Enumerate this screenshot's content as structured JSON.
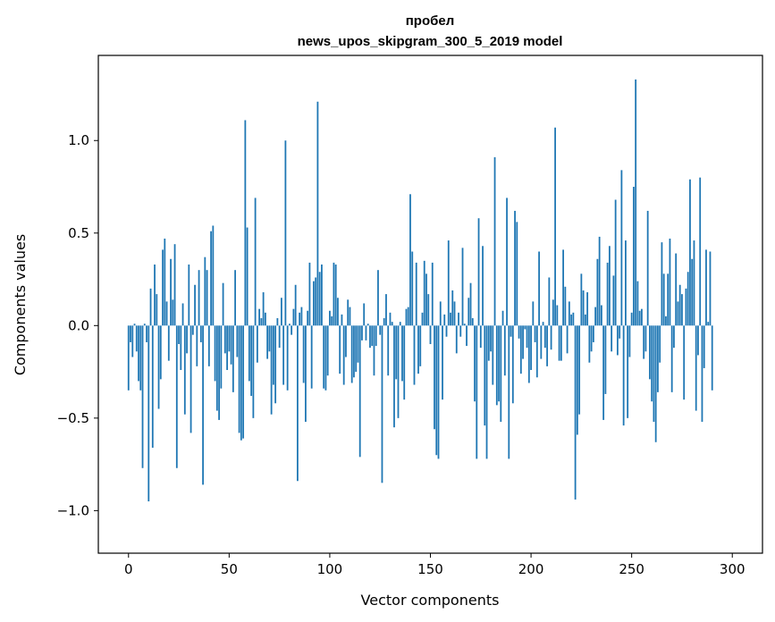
{
  "chart_data": {
    "type": "bar",
    "title_line1": "пробел",
    "title_line2": "news_upos_skipgram_300_5_2019 model",
    "xlabel": "Vector components",
    "ylabel": "Components values",
    "xlim": [
      -15,
      315
    ],
    "ylim": [
      -1.23,
      1.46
    ],
    "xticks": [
      0,
      50,
      100,
      150,
      200,
      250,
      300
    ],
    "xtick_labels": [
      "0",
      "50",
      "100",
      "150",
      "200",
      "250",
      "300"
    ],
    "yticks": [
      -1.0,
      -0.5,
      0.0,
      0.5,
      1.0
    ],
    "ytick_labels": [
      "−1.0",
      "−0.5",
      "0.0",
      "0.5",
      "1.0"
    ],
    "bar_color": "#1f77b4",
    "values": [
      -0.35,
      -0.09,
      -0.17,
      0.01,
      -0.14,
      -0.3,
      -0.35,
      -0.77,
      0.01,
      -0.09,
      -0.95,
      0.2,
      -0.66,
      0.33,
      0.17,
      -0.45,
      -0.29,
      0.41,
      0.47,
      0.13,
      -0.19,
      0.36,
      0.14,
      0.44,
      -0.77,
      -0.1,
      -0.24,
      0.12,
      -0.48,
      -0.15,
      0.33,
      -0.58,
      -0.05,
      0.22,
      -0.22,
      0.3,
      -0.09,
      -0.86,
      0.37,
      0.3,
      -0.22,
      0.51,
      0.54,
      -0.3,
      -0.46,
      -0.51,
      -0.34,
      0.23,
      -0.15,
      -0.24,
      -0.14,
      -0.21,
      -0.36,
      0.3,
      -0.17,
      -0.58,
      -0.62,
      -0.61,
      1.11,
      0.53,
      -0.3,
      -0.38,
      -0.5,
      0.69,
      -0.2,
      0.09,
      0.04,
      0.18,
      0.07,
      -0.18,
      -0.14,
      -0.48,
      -0.32,
      -0.42,
      0.04,
      -0.12,
      0.15,
      -0.32,
      1.0,
      -0.35,
      0.01,
      -0.05,
      0.09,
      0.22,
      -0.84,
      0.07,
      0.1,
      -0.31,
      -0.52,
      0.08,
      0.34,
      -0.34,
      0.24,
      0.26,
      1.21,
      0.29,
      0.33,
      -0.34,
      -0.35,
      -0.27,
      0.08,
      0.05,
      0.34,
      0.33,
      0.15,
      -0.26,
      0.06,
      -0.32,
      -0.17,
      0.14,
      0.1,
      -0.31,
      -0.28,
      -0.25,
      -0.2,
      -0.71,
      -0.08,
      0.12,
      -0.08,
      0.01,
      -0.12,
      -0.11,
      -0.27,
      -0.11,
      0.3,
      -0.05,
      -0.85,
      0.04,
      0.17,
      -0.27,
      0.07,
      0.02,
      -0.55,
      -0.29,
      -0.5,
      0.02,
      -0.3,
      -0.4,
      0.09,
      0.1,
      0.71,
      0.4,
      -0.32,
      0.34,
      -0.26,
      -0.22,
      0.07,
      0.35,
      0.28,
      0.17,
      -0.1,
      0.34,
      -0.56,
      -0.7,
      -0.72,
      0.13,
      -0.4,
      0.06,
      -0.06,
      0.46,
      0.07,
      0.19,
      0.13,
      -0.15,
      0.07,
      -0.06,
      0.42,
      0.01,
      -0.11,
      0.15,
      0.23,
      0.04,
      -0.41,
      -0.72,
      0.58,
      -0.12,
      0.43,
      -0.54,
      -0.72,
      -0.19,
      -0.14,
      -0.32,
      0.91,
      -0.43,
      -0.41,
      -0.52,
      0.08,
      -0.27,
      0.69,
      -0.72,
      -0.06,
      -0.42,
      0.62,
      0.56,
      -0.07,
      -0.26,
      -0.18,
      -0.02,
      -0.12,
      -0.31,
      -0.24,
      0.13,
      -0.09,
      -0.28,
      0.4,
      -0.18,
      0.02,
      -0.12,
      -0.22,
      0.26,
      -0.13,
      0.14,
      1.07,
      0.11,
      -0.19,
      -0.19,
      0.41,
      0.21,
      -0.15,
      0.13,
      0.06,
      0.07,
      -0.94,
      -0.59,
      -0.48,
      0.28,
      0.19,
      0.06,
      0.18,
      -0.2,
      -0.14,
      -0.09,
      0.1,
      0.36,
      0.48,
      0.11,
      -0.51,
      -0.37,
      0.34,
      0.43,
      -0.14,
      0.27,
      0.68,
      -0.16,
      -0.07,
      0.84,
      -0.54,
      0.46,
      -0.5,
      -0.17,
      0.07,
      0.75,
      1.33,
      0.24,
      0.08,
      0.09,
      -0.18,
      -0.14,
      0.62,
      -0.29,
      -0.41,
      -0.52,
      -0.63,
      -0.36,
      -0.2,
      0.45,
      0.28,
      0.05,
      0.28,
      0.47,
      -0.36,
      -0.12,
      0.39,
      0.13,
      0.22,
      0.17,
      -0.4,
      0.2,
      0.29,
      0.79,
      0.36,
      0.46,
      -0.46,
      -0.16,
      0.8,
      -0.52,
      -0.23,
      0.41,
      0.02,
      0.4,
      -0.35
    ]
  }
}
